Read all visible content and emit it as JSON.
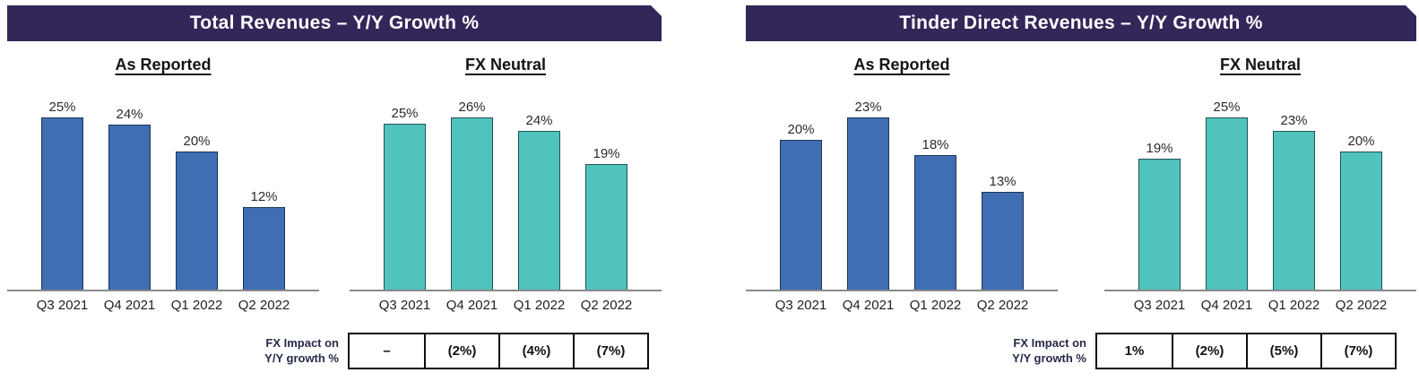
{
  "colors": {
    "header_bg": "#332659",
    "header_text": "#ffffff",
    "as_reported_bar": "#3F6EB3",
    "fx_neutral_bar": "#4FC3BC",
    "axis_line": "#8a8a8a",
    "table_border": "#0d0d0d"
  },
  "chart_data": [
    {
      "type": "bar",
      "panel_title": "Total Revenues – Y/Y Growth %",
      "categories": [
        "Q3 2021",
        "Q4 2021",
        "Q1 2022",
        "Q2 2022"
      ],
      "unit": "%",
      "ylim": [
        0,
        26
      ],
      "grid": false,
      "value_labels_shown": true,
      "series": [
        {
          "name": "As Reported",
          "values": [
            25,
            24,
            20,
            12
          ],
          "color": "#3F6EB3"
        },
        {
          "name": "FX Neutral",
          "values": [
            25,
            26,
            24,
            19
          ],
          "color": "#4FC3BC"
        }
      ],
      "fx_label": [
        "FX Impact on",
        "Y/Y growth %"
      ],
      "fx_impact": [
        "–",
        "(2%)",
        "(4%)",
        "(7%)"
      ]
    },
    {
      "type": "bar",
      "panel_title": "Tinder Direct Revenues – Y/Y Growth %",
      "categories": [
        "Q3 2021",
        "Q4 2021",
        "Q1 2022",
        "Q2 2022"
      ],
      "unit": "%",
      "ylim": [
        0,
        25
      ],
      "grid": false,
      "value_labels_shown": true,
      "series": [
        {
          "name": "As Reported",
          "values": [
            20,
            23,
            18,
            13
          ],
          "color": "#3F6EB3"
        },
        {
          "name": "FX Neutral",
          "values": [
            19,
            25,
            23,
            20
          ],
          "color": "#4FC3BC"
        }
      ],
      "fx_label": [
        "FX Impact on",
        "Y/Y growth %"
      ],
      "fx_impact": [
        "1%",
        "(2%)",
        "(5%)",
        "(7%)"
      ]
    }
  ]
}
